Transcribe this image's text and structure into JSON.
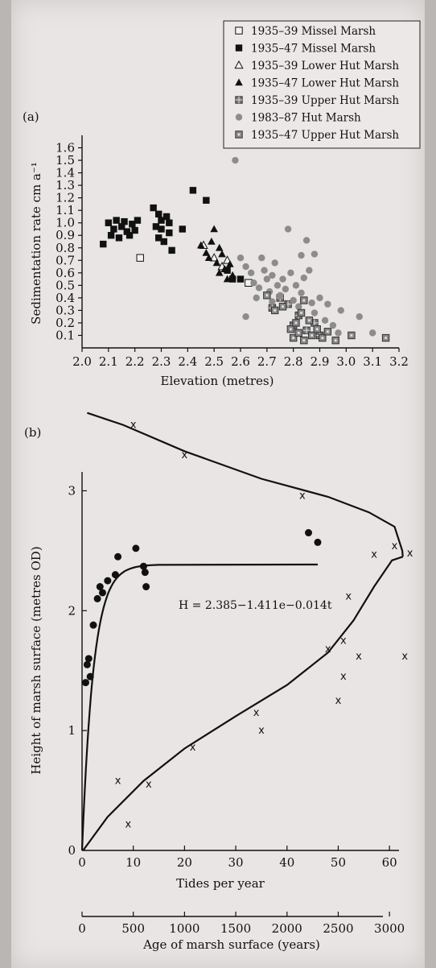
{
  "chart_data": [
    {
      "type": "scatter",
      "panel_label": "(a)",
      "xlabel": "Elevation (metres)",
      "ylabel": "Sedimentation rate  cm a⁻¹",
      "xlim": [
        2.0,
        3.2
      ],
      "ylim": [
        0,
        1.7
      ],
      "xticks": [
        "2.0",
        "2.1",
        "2.2",
        "2.3",
        "2.4",
        "2.5",
        "2.6",
        "2.7",
        "2.8",
        "2.9",
        "3.0",
        "3.1",
        "3.2"
      ],
      "yticks": [
        "0.1",
        "0.2",
        "0.3",
        "0.4",
        "0.5",
        "0.6",
        "0.7",
        "0.8",
        "0.9",
        "1.0",
        "1.1",
        "1.2",
        "1.3",
        "1.4",
        "1.5",
        "1.6"
      ],
      "legend_position": "top-right",
      "series": [
        {
          "name": "1935–39 Missel Marsh",
          "marker": "open-square",
          "points": [
            [
              2.22,
              0.72
            ],
            [
              2.63,
              0.52
            ]
          ]
        },
        {
          "name": "1935–47 Missel Marsh",
          "marker": "filled-square",
          "points": [
            [
              2.08,
              0.83
            ],
            [
              2.1,
              1.0
            ],
            [
              2.12,
              0.95
            ],
            [
              2.13,
              1.02
            ],
            [
              2.14,
              0.88
            ],
            [
              2.15,
              0.97
            ],
            [
              2.16,
              1.01
            ],
            [
              2.17,
              0.93
            ],
            [
              2.18,
              0.9
            ],
            [
              2.19,
              0.99
            ],
            [
              2.2,
              0.94
            ],
            [
              2.11,
              0.9
            ],
            [
              2.21,
              1.02
            ],
            [
              2.27,
              1.12
            ],
            [
              2.28,
              0.97
            ],
            [
              2.29,
              0.88
            ],
            [
              2.3,
              1.02
            ],
            [
              2.3,
              0.95
            ],
            [
              2.31,
              0.85
            ],
            [
              2.32,
              1.05
            ],
            [
              2.33,
              0.92
            ],
            [
              2.34,
              0.78
            ],
            [
              2.29,
              1.07
            ],
            [
              2.33,
              1.0
            ],
            [
              2.42,
              1.26
            ],
            [
              2.47,
              1.18
            ],
            [
              2.38,
              0.95
            ],
            [
              2.55,
              0.62
            ],
            [
              2.57,
              0.55
            ],
            [
              2.6,
              0.55
            ]
          ]
        },
        {
          "name": "1935–39 Lower Hut Marsh",
          "marker": "open-triangle",
          "points": [
            [
              2.46,
              0.82
            ],
            [
              2.5,
              0.72
            ],
            [
              2.53,
              0.65
            ],
            [
              2.55,
              0.7
            ]
          ]
        },
        {
          "name": "1935–47 Lower Hut Marsh",
          "marker": "filled-triangle",
          "points": [
            [
              2.45,
              0.82
            ],
            [
              2.47,
              0.76
            ],
            [
              2.49,
              0.85
            ],
            [
              2.5,
              0.95
            ],
            [
              2.51,
              0.68
            ],
            [
              2.52,
              0.6
            ],
            [
              2.53,
              0.75
            ],
            [
              2.54,
              0.63
            ],
            [
              2.56,
              0.67
            ],
            [
              2.57,
              0.58
            ],
            [
              2.52,
              0.8
            ],
            [
              2.48,
              0.72
            ],
            [
              2.55,
              0.55
            ]
          ]
        },
        {
          "name": "1935–39 Upper Hut Marsh",
          "marker": "crossed-square",
          "points": [
            [
              2.72,
              0.32
            ],
            [
              2.75,
              0.4
            ],
            [
              2.8,
              0.18
            ],
            [
              2.82,
              0.26
            ],
            [
              2.85,
              0.14
            ],
            [
              2.88,
              0.2
            ],
            [
              2.9,
              0.1
            ],
            [
              2.78,
              0.35
            ]
          ]
        },
        {
          "name": "1983–87 Hut Marsh",
          "marker": "filled-circle",
          "points": [
            [
              2.58,
              1.5
            ],
            [
              2.6,
              0.72
            ],
            [
              2.62,
              0.65
            ],
            [
              2.64,
              0.6
            ],
            [
              2.65,
              0.52
            ],
            [
              2.67,
              0.48
            ],
            [
              2.69,
              0.62
            ],
            [
              2.7,
              0.55
            ],
            [
              2.71,
              0.45
            ],
            [
              2.72,
              0.58
            ],
            [
              2.73,
              0.68
            ],
            [
              2.74,
              0.5
            ],
            [
              2.75,
              0.42
            ],
            [
              2.76,
              0.55
            ],
            [
              2.77,
              0.47
            ],
            [
              2.78,
              0.95
            ],
            [
              2.79,
              0.6
            ],
            [
              2.8,
              0.38
            ],
            [
              2.81,
              0.5
            ],
            [
              2.82,
              0.33
            ],
            [
              2.83,
              0.44
            ],
            [
              2.84,
              0.56
            ],
            [
              2.85,
              0.86
            ],
            [
              2.86,
              0.62
            ],
            [
              2.87,
              0.36
            ],
            [
              2.88,
              0.28
            ],
            [
              2.9,
              0.4
            ],
            [
              2.92,
              0.22
            ],
            [
              2.95,
              0.18
            ],
            [
              2.98,
              0.3
            ],
            [
              3.05,
              0.25
            ],
            [
              3.1,
              0.12
            ],
            [
              2.68,
              0.72
            ],
            [
              2.72,
              0.37
            ],
            [
              2.83,
              0.74
            ],
            [
              2.88,
              0.75
            ],
            [
              2.93,
              0.35
            ],
            [
              2.97,
              0.12
            ],
            [
              2.62,
              0.25
            ],
            [
              2.66,
              0.4
            ]
          ]
        },
        {
          "name": "1935–47 Upper Hut Marsh",
          "marker": "dotted-square",
          "points": [
            [
              2.7,
              0.42
            ],
            [
              2.73,
              0.3
            ],
            [
              2.76,
              0.33
            ],
            [
              2.79,
              0.15
            ],
            [
              2.8,
              0.08
            ],
            [
              2.81,
              0.2
            ],
            [
              2.82,
              0.12
            ],
            [
              2.83,
              0.28
            ],
            [
              2.84,
              0.06
            ],
            [
              2.86,
              0.22
            ],
            [
              2.87,
              0.1
            ],
            [
              2.89,
              0.15
            ],
            [
              2.91,
              0.08
            ],
            [
              2.93,
              0.13
            ],
            [
              2.96,
              0.06
            ],
            [
              3.02,
              0.1
            ],
            [
              3.15,
              0.08
            ],
            [
              2.84,
              0.38
            ]
          ]
        }
      ]
    },
    {
      "type": "scatter",
      "panel_label": "(b)",
      "xlabel": "Tides per year",
      "x2label": "Age of marsh surface (years)",
      "ylabel": "Height of marsh surface (metres OD)",
      "xlim": [
        0,
        65
      ],
      "x2lim": [
        0,
        3250
      ],
      "ylim": [
        0,
        3.5
      ],
      "xticks": [
        "0",
        "10",
        "20",
        "30",
        "40",
        "50",
        "60"
      ],
      "x2ticks": [
        "0",
        "500",
        "1000",
        "1500",
        "2000",
        "2500",
        "3000"
      ],
      "yticks": [
        "0",
        "1",
        "2",
        "3"
      ],
      "annotation": "H = 2.385−1.411e−0.014t",
      "series": [
        {
          "marker": "filled-circle",
          "points": [
            [
              0.7,
              1.4
            ],
            [
              1.0,
              1.55
            ],
            [
              1.3,
              1.6
            ],
            [
              1.6,
              1.45
            ],
            [
              2.2,
              1.88
            ],
            [
              3.0,
              2.1
            ],
            [
              3.5,
              2.2
            ],
            [
              4.0,
              2.15
            ],
            [
              5.0,
              2.25
            ],
            [
              6.5,
              2.3
            ],
            [
              7.0,
              2.45
            ],
            [
              10.5,
              2.52
            ],
            [
              12.0,
              2.37
            ],
            [
              12.3,
              2.32
            ],
            [
              12.5,
              2.2
            ]
          ]
        },
        {
          "marker": "filled-circle",
          "points": [
            [
              2210,
              2.65
            ],
            [
              2300,
              2.57
            ]
          ]
        },
        {
          "marker": "x",
          "points": [
            [
              500,
              3.55
            ],
            [
              1000,
              3.3
            ],
            [
              2150,
              2.96
            ],
            [
              3050,
              2.54
            ],
            [
              3200,
              2.48
            ],
            [
              2850,
              2.47
            ],
            [
              2600,
              2.12
            ],
            [
              2550,
              1.75
            ],
            [
              2400,
              1.68
            ],
            [
              3150,
              1.62
            ],
            [
              2700,
              1.62
            ],
            [
              2550,
              1.45
            ],
            [
              2500,
              1.25
            ],
            [
              1700,
              1.15
            ],
            [
              1750,
              1.0
            ],
            [
              1080,
              0.86
            ],
            [
              350,
              0.58
            ],
            [
              650,
              0.55
            ],
            [
              450,
              0.22
            ]
          ]
        }
      ]
    }
  ]
}
